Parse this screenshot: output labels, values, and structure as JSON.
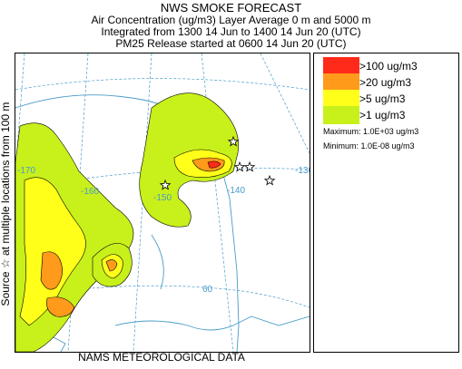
{
  "header": {
    "title": "NWS SMOKE FORECAST",
    "line2": "Air Concentration (ug/m3) Layer Average    0 m and  5000 m",
    "line3": "Integrated from 1300 14 Jun to 1400 14 Jun 20 (UTC)",
    "line4": "PM25 Release started at 0600 14 Jun 20 (UTC)"
  },
  "side_label": "Source ☆ at multiple locations   from  100 m",
  "footer": "NAMS METEOROLOGICAL DATA",
  "map": {
    "longitude_labels": [
      "-170",
      "-160",
      "-150",
      "-140",
      "-130"
    ],
    "latitude_labels": [
      "60"
    ],
    "colors": {
      "water_boundary": "#4a9cc8",
      "graticule": "#4a9cc8",
      "contour_line": "#000000"
    }
  },
  "legend": {
    "items": [
      {
        "label": ">100 ug/m3",
        "color": "#ff2a1a"
      },
      {
        "label": ">20 ug/m3",
        "color": "#ff9a1a"
      },
      {
        "label": ">5 ug/m3",
        "color": "#ffff1a"
      },
      {
        "label": ">1 ug/m3",
        "color": "#c8f01a"
      }
    ],
    "maximum": "Maximum: 1.0E+03 ug/m3",
    "minimum": "Minimum: 1.0E-08 ug/m3"
  }
}
